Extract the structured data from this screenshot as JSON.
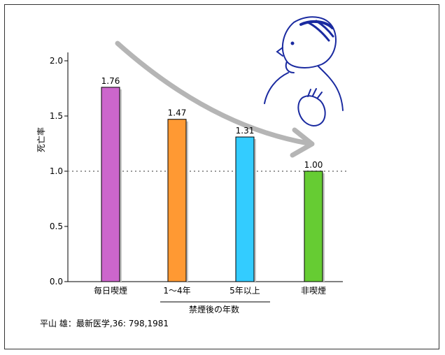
{
  "chart_data": {
    "type": "bar",
    "categories": [
      "毎日喫煙",
      "1～4年",
      "5年以上",
      "非喫煙"
    ],
    "values": [
      1.76,
      1.47,
      1.31,
      1.0
    ],
    "value_labels": [
      "1.76",
      "1.47",
      "1.31",
      "1.00"
    ],
    "colors": [
      "#cc66cc",
      "#ff9933",
      "#33ccff",
      "#66cc33"
    ],
    "ylabel": "死亡率",
    "ylim": [
      0,
      2.0
    ],
    "yticks": [
      "0.0",
      "0.5",
      "1.0",
      "1.5",
      "2.0"
    ],
    "reference_line": 1.0,
    "group_label": "禁煙後の年数",
    "grid": false
  },
  "citation": "平山 雄：最新医学,36: 798,1981"
}
